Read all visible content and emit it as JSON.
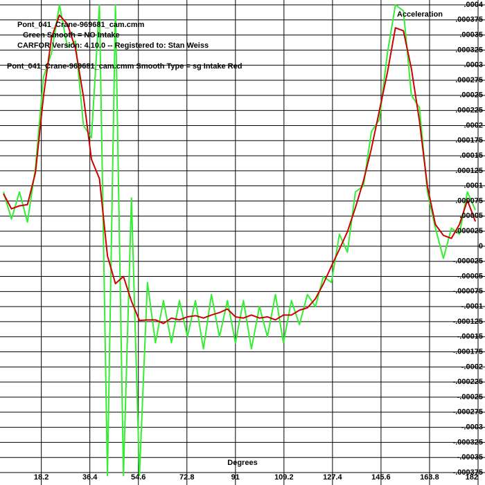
{
  "chart_data": {
    "type": "line",
    "title_lines": [
      "Pont_041_Crane-969681_cam.cmm",
      "Green  Smooth = NO    Intake",
      "CARFOR Version: 4.10.0 -- Registered to:    Stan Weiss",
      "Pont_041_Crane-969681_cam.cmm    Smooth Type = sg  Intake  Red"
    ],
    "y_label": "Acceleration",
    "x_label": "Degrees",
    "x": [
      4,
      7,
      10,
      13,
      16,
      19,
      22,
      25,
      28,
      31,
      34,
      37,
      40,
      43,
      46,
      49,
      52,
      55,
      58,
      61,
      64,
      67,
      70,
      73,
      76,
      79,
      82,
      85,
      88,
      91,
      94,
      97,
      100,
      103,
      106,
      109,
      112,
      115,
      118,
      121,
      124,
      127,
      130,
      133,
      136,
      139,
      142,
      145,
      148,
      151,
      154,
      157,
      160,
      163,
      166,
      169,
      172,
      175,
      178,
      181
    ],
    "series": [
      {
        "name": "Green",
        "color": "#33ee33",
        "values": [
          9e-05,
          4.5e-05,
          9e-05,
          4e-05,
          0.00013,
          0.00028,
          0.00032,
          0.0004,
          0.00033,
          0.00034,
          0.0002,
          0.00018,
          0.0004,
          -0.00038,
          0.0004,
          -0.00038,
          8e-05,
          -0.00038,
          -6e-05,
          -0.00016,
          -9e-05,
          -0.00016,
          -9e-05,
          -0.00015,
          -9e-05,
          -0.00017,
          -8e-05,
          -0.00015,
          -9e-05,
          -0.00016,
          -9e-05,
          -0.00017,
          -0.0001,
          -0.00015,
          -8e-05,
          -0.00016,
          -9e-05,
          -0.00013,
          -8e-05,
          -0.0001,
          -5e-05,
          -6e-05,
          2e-05,
          -1e-05,
          9e-05,
          0.0001,
          0.00019,
          0.00021,
          0.00032,
          0.0004,
          0.00039,
          0.00025,
          0.00023,
          9e-05,
          3e-05,
          -2e-05,
          3e-05,
          2e-05,
          9e-05,
          6e-05
        ]
      },
      {
        "name": "Red",
        "color": "#cc0000",
        "values": [
          8.7e-05,
          6.2e-05,
          6.7e-05,
          6.9e-05,
          0.000122,
          0.000248,
          0.000345,
          0.000383,
          0.000368,
          0.000328,
          0.000248,
          0.000144,
          0.000112,
          -1.6e-05,
          -6.2e-05,
          -5e-05,
          -9.1e-05,
          -0.000123,
          -0.000122,
          -0.000122,
          -0.000128,
          -0.000119,
          -0.000122,
          -0.000117,
          -0.000115,
          -0.000119,
          -0.000114,
          -0.00011,
          -0.000104,
          -0.000117,
          -0.000119,
          -0.000114,
          -0.000119,
          -0.000117,
          -0.000122,
          -0.000114,
          -0.000114,
          -0.000106,
          -0.000102,
          -8.7e-05,
          -6.2e-05,
          -3.3e-05,
          -5e-06,
          2.4e-05,
          6.4e-05,
          0.000108,
          0.000162,
          0.000225,
          0.000288,
          0.000362,
          0.000357,
          0.000294,
          0.000208,
          9.9e-05,
          3.6e-05,
          1.8e-05,
          1.3e-05,
          3.6e-05,
          7.6e-05,
          4.1e-05
        ]
      }
    ],
    "xlim": [
      4,
      182
    ],
    "xticks": [
      18.2,
      36.4,
      54.6,
      72.8,
      91,
      109.2,
      127.4,
      145.6,
      163.8,
      182
    ],
    "ylim": [
      -0.000375,
      0.0004
    ],
    "yticks": [
      {
        "value": 0.0004,
        "label": ".0004"
      },
      {
        "value": 0.000375,
        "label": ".000375"
      },
      {
        "value": 0.00035,
        "label": ".00035"
      },
      {
        "value": 0.000325,
        "label": ".000325"
      },
      {
        "value": 0.0003,
        "label": ".0003"
      },
      {
        "value": 0.000275,
        "label": ".000275"
      },
      {
        "value": 0.00025,
        "label": ".00025"
      },
      {
        "value": 0.000225,
        "label": ".000225"
      },
      {
        "value": 0.0002,
        "label": ".0002"
      },
      {
        "value": 0.000175,
        "label": ".000175"
      },
      {
        "value": 0.00015,
        "label": ".00015"
      },
      {
        "value": 0.000125,
        "label": ".000125"
      },
      {
        "value": 0.0001,
        "label": ".0001"
      },
      {
        "value": 7.5e-05,
        "label": ".000075"
      },
      {
        "value": 5e-05,
        "label": ".00005"
      },
      {
        "value": 2.5e-05,
        "label": ".000025"
      },
      0,
      {
        "value": -2.5e-05,
        "label": "-.000025"
      },
      {
        "value": -5e-05,
        "label": "-.00005"
      },
      {
        "value": -7.5e-05,
        "label": "-.000075"
      },
      {
        "value": -0.0001,
        "label": "-.0001"
      },
      {
        "value": -0.000125,
        "label": "-.000125"
      },
      {
        "value": -0.00015,
        "label": "-.00015"
      },
      {
        "value": -0.000175,
        "label": "-.000175"
      },
      {
        "value": -0.0002,
        "label": "-.0002"
      },
      {
        "value": -0.000225,
        "label": "-.000225"
      },
      {
        "value": -0.00025,
        "label": "-.00025"
      },
      {
        "value": -0.000275,
        "label": "-.000275"
      },
      {
        "value": -0.0003,
        "label": "-.0003"
      },
      {
        "value": -0.000325,
        "label": "-.000325"
      },
      {
        "value": -0.00035,
        "label": "-.00035"
      },
      {
        "value": -0.000375,
        "label": "-.000375"
      }
    ],
    "grid": true
  }
}
